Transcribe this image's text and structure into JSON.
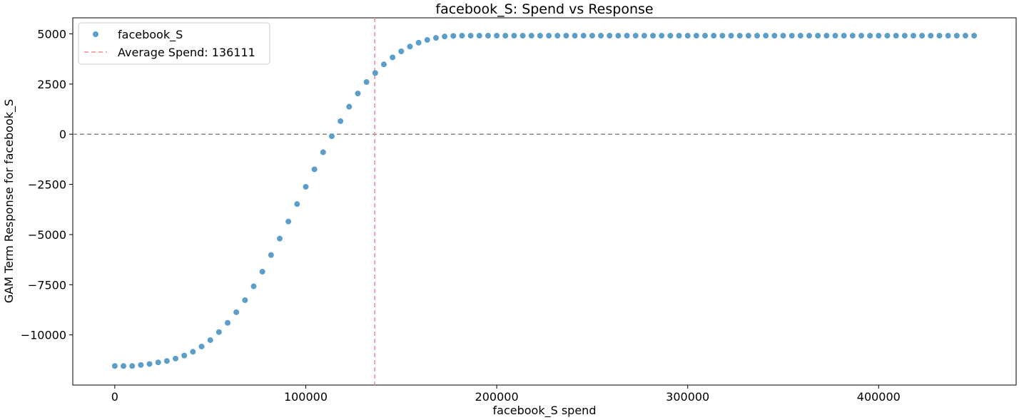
{
  "chart_data": {
    "type": "scatter",
    "title": "facebook_S: Spend vs Response",
    "xlabel": "facebook_S spend",
    "ylabel": "GAM Term Response for facebook_S",
    "xlim": [
      -22000,
      472000
    ],
    "ylim": [
      -12500,
      5800
    ],
    "xticks": [
      0,
      100000,
      200000,
      300000,
      400000
    ],
    "xtick_labels": [
      "0",
      "100000",
      "200000",
      "300000",
      "400000"
    ],
    "yticks": [
      5000,
      2500,
      0,
      -2500,
      -5000,
      -7500,
      -10000
    ],
    "ytick_labels": [
      "5000",
      "2500",
      "0",
      "−2500",
      "−5000",
      "−7500",
      "−10000"
    ],
    "grid": false,
    "legend_position": "top-left",
    "series": [
      {
        "name": "facebook_S",
        "color": "#5b9ec9",
        "x": [
          0,
          4545,
          9091,
          13636,
          18182,
          22727,
          27273,
          31818,
          36364,
          40909,
          45455,
          50000,
          54545,
          59091,
          63636,
          68182,
          72727,
          77273,
          81818,
          86364,
          90909,
          95455,
          100000,
          104545,
          109091,
          113636,
          118182,
          122727,
          127273,
          131818,
          136364,
          140909,
          145455,
          150000,
          154545,
          159091,
          163636,
          168182,
          172727,
          177273,
          181818,
          186364,
          190909,
          195455,
          200000,
          204545,
          209091,
          213636,
          218182,
          222727,
          227273,
          231818,
          236364,
          240909,
          245455,
          250000,
          254545,
          259091,
          263636,
          268182,
          272727,
          277273,
          281818,
          286364,
          290909,
          295455,
          300000,
          304545,
          309091,
          313636,
          318182,
          322727,
          327273,
          331818,
          336364,
          340909,
          345455,
          350000,
          354545,
          359091,
          363636,
          368182,
          372727,
          377273,
          381818,
          386364,
          390909,
          395455,
          400000,
          404545,
          409091,
          413636,
          418182,
          422727,
          427273,
          431818,
          436364,
          440909,
          445455,
          450000
        ],
        "y": [
          -11550,
          -11550,
          -11550,
          -11500,
          -11450,
          -11370,
          -11300,
          -11180,
          -11030,
          -10840,
          -10580,
          -10260,
          -9860,
          -9400,
          -8870,
          -8270,
          -7580,
          -6850,
          -6020,
          -5200,
          -4350,
          -3480,
          -2620,
          -1750,
          -900,
          -100,
          650,
          1370,
          2030,
          2600,
          3050,
          3480,
          3830,
          4130,
          4370,
          4560,
          4700,
          4800,
          4870,
          4900,
          4910,
          4910,
          4910,
          4910,
          4910,
          4910,
          4910,
          4910,
          4910,
          4910,
          4910,
          4910,
          4910,
          4910,
          4910,
          4910,
          4910,
          4910,
          4910,
          4910,
          4910,
          4910,
          4910,
          4910,
          4910,
          4910,
          4910,
          4910,
          4910,
          4910,
          4910,
          4910,
          4910,
          4910,
          4910,
          4910,
          4910,
          4910,
          4910,
          4910,
          4910,
          4910,
          4910,
          4910,
          4910,
          4910,
          4910,
          4910,
          4910,
          4910,
          4910,
          4910,
          4910,
          4910,
          4910,
          4910,
          4910,
          4910,
          4910,
          4910
        ]
      }
    ],
    "reference_lines": [
      {
        "orientation": "vertical",
        "value": 136111,
        "color": "#f08a92",
        "dash": true,
        "legend": "Average Spend: 136111"
      },
      {
        "orientation": "horizontal",
        "value": 0,
        "color": "#888888",
        "dash": true
      }
    ]
  }
}
